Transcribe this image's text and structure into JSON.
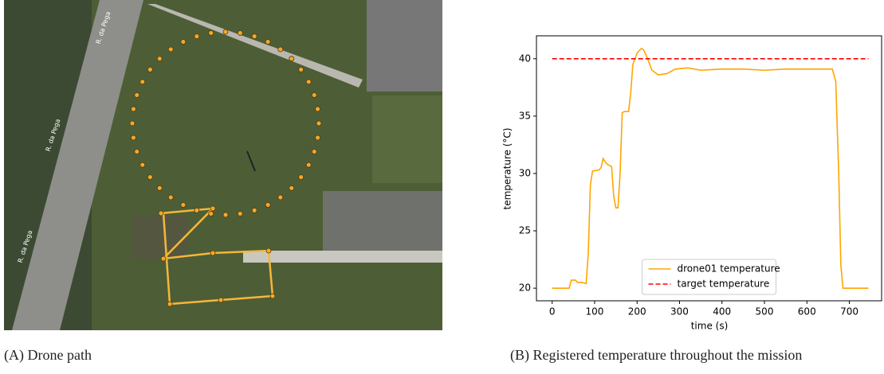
{
  "figure_a": {
    "caption": "(A) Drone path",
    "street_labels": [
      "R. da Pega",
      "R. da Pega",
      "R. da Pega"
    ]
  },
  "figure_b": {
    "caption": "(B) Registered temperature throughout the mission"
  },
  "chart_data": {
    "type": "line",
    "xlabel": "time (s)",
    "ylabel": "temperature (°C)",
    "xlim": [
      -37,
      776
    ],
    "ylim": [
      18.9,
      42
    ],
    "xticks": [
      0,
      100,
      200,
      300,
      400,
      500,
      600,
      700
    ],
    "yticks": [
      20,
      25,
      30,
      35,
      40
    ],
    "legend": "lower center",
    "series": [
      {
        "name": "drone01 temperature",
        "color": "#ffa500",
        "linestyle": "solid",
        "x": [
          0,
          40,
          45,
          55,
          60,
          70,
          80,
          85,
          90,
          95,
          110,
          115,
          120,
          125,
          130,
          140,
          145,
          150,
          155,
          160,
          165,
          170,
          180,
          185,
          190,
          200,
          210,
          215,
          225,
          235,
          250,
          270,
          290,
          320,
          350,
          400,
          450,
          500,
          550,
          600,
          660,
          668,
          675,
          680,
          685,
          745
        ],
        "values": [
          20,
          20,
          20.7,
          20.7,
          20.5,
          20.5,
          20.4,
          23,
          29,
          30.2,
          30.3,
          30.5,
          31.3,
          31,
          30.8,
          30.6,
          28,
          27,
          27,
          30,
          35.3,
          35.4,
          35.4,
          37,
          39.5,
          40.5,
          40.9,
          40.8,
          40,
          39,
          38.6,
          38.7,
          39.1,
          39.2,
          39,
          39.1,
          39.1,
          39,
          39.1,
          39.1,
          39.1,
          38,
          30,
          22,
          20,
          20
        ]
      },
      {
        "name": "target temperature",
        "color": "#ff0000",
        "linestyle": "dashed",
        "x": [
          0,
          745
        ],
        "values": [
          40,
          40
        ]
      }
    ]
  }
}
